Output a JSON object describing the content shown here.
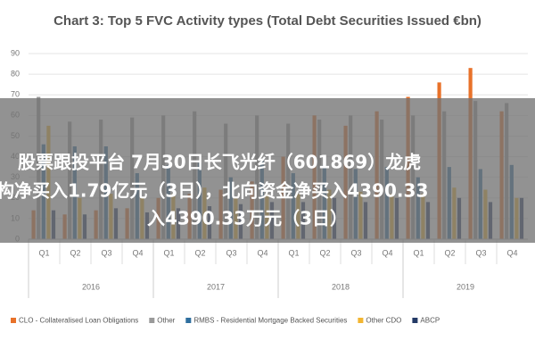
{
  "chart_data": {
    "type": "bar",
    "title": "Chart 3: Top 5 FVC Activity types (Total Debt Securities Issued €bn)",
    "categories": [
      "Q1",
      "Q2",
      "Q3",
      "Q4",
      "Q1",
      "Q2",
      "Q3",
      "Q4",
      "Q1",
      "Q2",
      "Q3",
      "Q4",
      "Q1",
      "Q2",
      "Q3",
      "Q4"
    ],
    "category_groups": [
      "2016",
      "2017",
      "2018",
      "2019"
    ],
    "series": [
      {
        "name": "CLO - Collateralised Loan Obligations",
        "color": "#e8722a",
        "values": [
          14,
          12,
          14,
          15,
          20,
          22,
          24,
          28,
          40,
          60,
          55,
          62,
          69,
          76,
          83,
          62
        ]
      },
      {
        "name": "Other",
        "color": "#9a9a9a",
        "values": [
          69,
          57,
          58,
          59,
          60,
          62,
          56,
          60,
          56,
          58,
          60,
          58,
          60,
          62,
          67,
          66
        ]
      },
      {
        "name": "RMBS - Residential Mortgage Backed Securities",
        "color": "#2f6f9f",
        "values": [
          46,
          45,
          45,
          32,
          36,
          37,
          30,
          38,
          32,
          36,
          34,
          35,
          30,
          35,
          34,
          36
        ]
      },
      {
        "name": "Other CDO",
        "color": "#f2b531",
        "values": [
          55,
          20,
          22,
          20,
          22,
          25,
          20,
          22,
          22,
          24,
          23,
          22,
          22,
          25,
          24,
          20
        ]
      },
      {
        "name": "ABCP",
        "color": "#243a66",
        "values": [
          14,
          12,
          15,
          13,
          15,
          16,
          17,
          18,
          18,
          20,
          18,
          20,
          18,
          20,
          18,
          20
        ]
      }
    ],
    "ylim": [
      0,
      90
    ],
    "yticks": [
      0,
      10,
      20,
      30,
      40,
      50,
      60,
      70,
      80,
      90
    ],
    "grid": true
  },
  "overlay_text": [
    "股票跟投平台 7月30日长飞光纤（601869）龙虎",
    "构净买入1.79亿元（3日），北向资金净买入4390.33",
    "入4390.33万元（3日）"
  ]
}
